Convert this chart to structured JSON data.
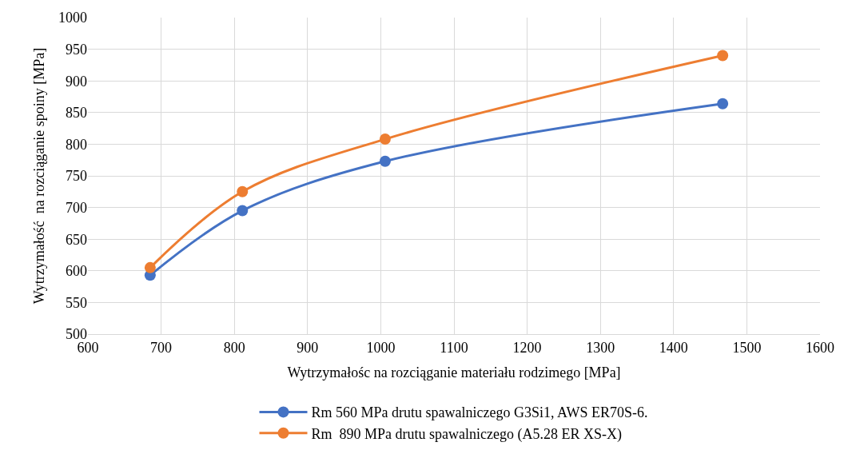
{
  "chart_data": {
    "type": "line",
    "xlabel": "Wytrzymałośc na rozciąganie materiału rodzimego [MPa]",
    "ylabel": "Wytrzymałość  na rozciąganie spoiny [MPa]",
    "x": [
      685,
      811,
      1006,
      1467
    ],
    "series": [
      {
        "name": "Rm 560 MPa drutu spawalniczego G3Si1, AWS ER70S-6.",
        "color": "#4472c4",
        "values": [
          593,
          695,
          773,
          864
        ]
      },
      {
        "name": "Rm  890 MPa drutu spawalniczego (A5.28 ER XS-X)",
        "color": "#ed7d31",
        "values": [
          605,
          725,
          808,
          940
        ]
      }
    ],
    "xlim": [
      600,
      1600
    ],
    "xticks": [
      600,
      700,
      800,
      900,
      1000,
      1100,
      1200,
      1300,
      1400,
      1500,
      1600
    ],
    "ylim": [
      500,
      1000
    ],
    "yticks": [
      500,
      550,
      600,
      650,
      700,
      750,
      800,
      850,
      900,
      950,
      1000
    ],
    "grid": true,
    "legend": "bottom",
    "marker": "circle",
    "line_style": "solid"
  }
}
